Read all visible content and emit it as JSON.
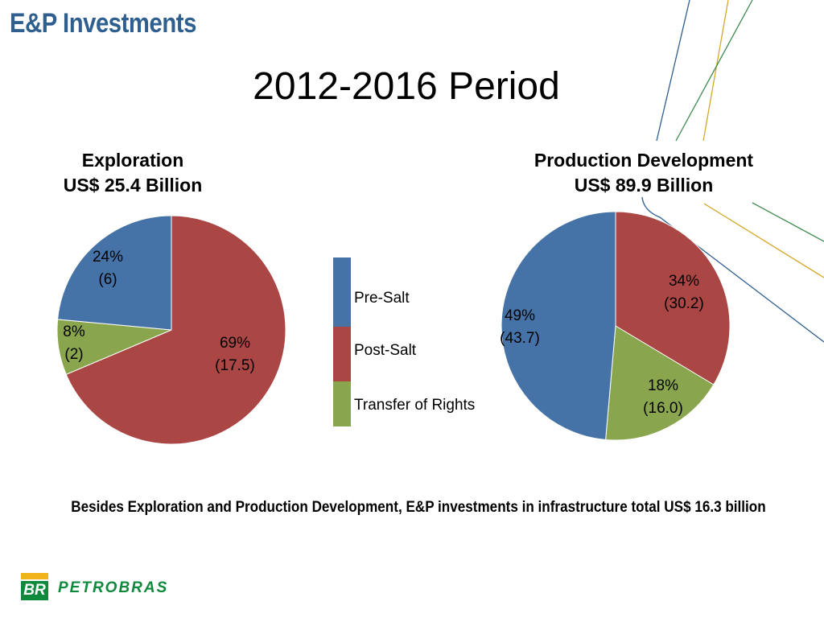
{
  "header": {
    "title": "E&P Investments"
  },
  "period_title": "2012-2016 Period",
  "footnote": "Besides Exploration and Production Development, E&P investments in infrastructure total US$ 16.3 billion",
  "logo": {
    "mark": "BR",
    "text": "PETROBRAS"
  },
  "colors": {
    "pre_salt": "#4572a7",
    "post_salt": "#aa4643",
    "transfer": "#89a54e",
    "header": "#2f5f8e"
  },
  "chart_data": [
    {
      "type": "pie",
      "title": "Exploration",
      "subtitle": "US$ 25.4 Billion",
      "slices": [
        {
          "name": "Pre-Salt",
          "percent": 24,
          "value": 6,
          "pct_label": "24%",
          "value_label": "(6)"
        },
        {
          "name": "Post-Salt",
          "percent": 69,
          "value": 17.5,
          "pct_label": "69%",
          "value_label": "(17.5)"
        },
        {
          "name": "Transfer of Rights",
          "percent": 8,
          "value": 2,
          "pct_label": "8%",
          "value_label": "(2)"
        }
      ]
    },
    {
      "type": "pie",
      "title": "Production Development",
      "subtitle": "US$ 89.9 Billion",
      "slices": [
        {
          "name": "Pre-Salt",
          "percent": 49,
          "value": 43.7,
          "pct_label": "49%",
          "value_label": "(43.7)"
        },
        {
          "name": "Post-Salt",
          "percent": 34,
          "value": 30.2,
          "pct_label": "34%",
          "value_label": "(30.2)"
        },
        {
          "name": "Transfer of Rights",
          "percent": 18,
          "value": 16.0,
          "pct_label": "18%",
          "value_label": "(16.0)"
        }
      ]
    }
  ],
  "legend": [
    {
      "label": "Pre-Salt",
      "color": "#4572a7"
    },
    {
      "label": "Post-Salt",
      "color": "#aa4643"
    },
    {
      "label": "Transfer of Rights",
      "color": "#89a54e"
    }
  ]
}
